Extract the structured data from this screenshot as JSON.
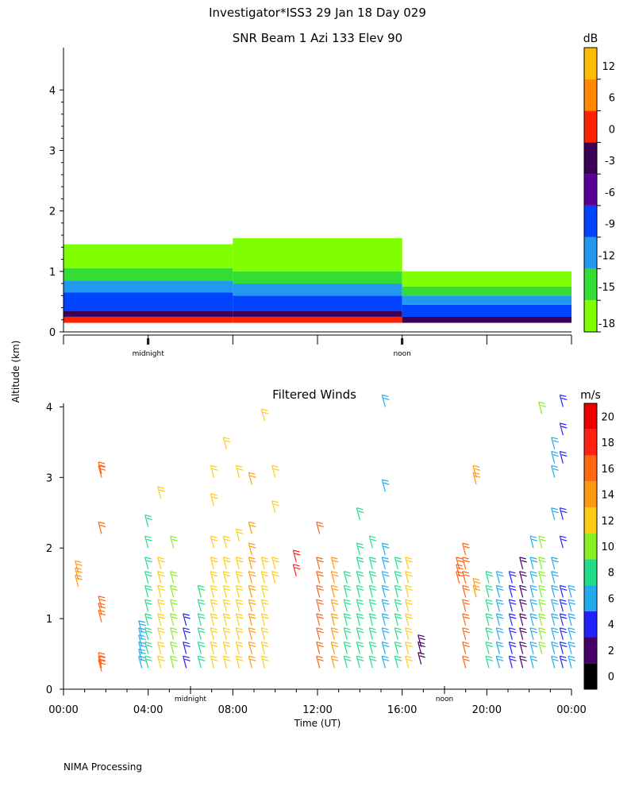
{
  "header": {
    "title": "Investigator*ISS3  29 Jan 18 Day 029",
    "ylabel": "Altitude (km)",
    "footer": "NIMA Processing"
  },
  "colors": {
    "snr_scale": [
      "#7fff00",
      "#33dd33",
      "#2299ee",
      "#0044ff",
      "#5a0099",
      "#3a0055",
      "#ff2200",
      "#ff8800",
      "#ffbb00"
    ],
    "wind_scale": [
      "#000000",
      "#440066",
      "#2222ff",
      "#22aaee",
      "#22dd88",
      "#88ee22",
      "#ffcc11",
      "#ff9911",
      "#ff6611",
      "#ff2211",
      "#ee0000"
    ]
  },
  "chart_data": [
    {
      "type": "heatmap",
      "title": "SNR Beam 1 Azi 133 Elev 90",
      "colorbar_label": "dB",
      "colorbar_ticks": [
        "12",
        "6",
        "0",
        "-3",
        "-6",
        "-9",
        "-12",
        "-15",
        "-18"
      ],
      "ylim": [
        0,
        4.7
      ],
      "yticks": [
        "0",
        "1",
        "2",
        "3",
        "4"
      ],
      "xlim_hours": [
        -4,
        20
      ],
      "time_markers": [
        "midnight",
        "noon"
      ],
      "bands": [
        {
          "from_h": -4,
          "to_h": 4,
          "layers_km": [
            [
              0.15,
              0.25,
              "#ff2200"
            ],
            [
              0.25,
              0.35,
              "#3a0055"
            ],
            [
              0.35,
              0.65,
              "#0044ff"
            ],
            [
              0.65,
              0.85,
              "#2299ee"
            ],
            [
              0.85,
              1.05,
              "#33dd33"
            ],
            [
              1.05,
              1.45,
              "#7fff00"
            ]
          ]
        },
        {
          "from_h": 4,
          "to_h": 12,
          "layers_km": [
            [
              0.15,
              0.25,
              "#ff2200"
            ],
            [
              0.25,
              0.35,
              "#3a0055"
            ],
            [
              0.35,
              0.6,
              "#0044ff"
            ],
            [
              0.6,
              0.8,
              "#2299ee"
            ],
            [
              0.8,
              1.0,
              "#33dd33"
            ],
            [
              1.0,
              1.55,
              "#7fff00"
            ]
          ]
        },
        {
          "from_h": 12,
          "to_h": 20,
          "layers_km": [
            [
              0.15,
              0.25,
              "#3a0055"
            ],
            [
              0.25,
              0.45,
              "#0044ff"
            ],
            [
              0.45,
              0.6,
              "#2299ee"
            ],
            [
              0.6,
              0.75,
              "#33dd33"
            ],
            [
              0.75,
              1.0,
              "#7fff00"
            ]
          ]
        }
      ]
    },
    {
      "type": "scatter",
      "title": "Filtered Winds",
      "colorbar_label": "m/s",
      "colorbar_ticks": [
        "20",
        "18",
        "16",
        "14",
        "12",
        "10",
        "8",
        "6",
        "4",
        "2",
        "0"
      ],
      "ylim": [
        0,
        4.05
      ],
      "yticks": [
        "0",
        "1",
        "2",
        "3",
        "4"
      ],
      "xlabel": "Time (UT)",
      "xticks": [
        "00:00",
        "04:00",
        "08:00",
        "12:00",
        "16:00",
        "20:00",
        "00:00"
      ],
      "xlim_hours": [
        0,
        24
      ],
      "time_markers": [
        "midnight",
        "noon"
      ],
      "profiles": [
        {
          "t": 0.7,
          "speed": 15,
          "levels": [
            1.45,
            1.55,
            1.65
          ]
        },
        {
          "t": 1.8,
          "speed": 17,
          "levels": [
            0.25,
            0.3,
            0.35,
            0.95,
            1.05,
            1.15,
            2.2,
            3.0,
            3.05
          ]
        },
        {
          "t": 3.7,
          "speed": 7,
          "levels": [
            0.3,
            0.4,
            0.5,
            0.6,
            0.7,
            0.8
          ]
        },
        {
          "t": 4.0,
          "speed": 9,
          "levels": [
            0.3,
            0.5,
            0.7,
            0.9,
            1.1,
            1.3,
            1.5,
            1.7,
            2.0,
            2.3
          ]
        },
        {
          "t": 4.6,
          "speed": 13,
          "levels": [
            0.3,
            0.5,
            0.7,
            0.9,
            1.1,
            1.3,
            1.5,
            1.7,
            2.7
          ]
        },
        {
          "t": 5.2,
          "speed": 10,
          "levels": [
            0.3,
            0.5,
            0.7,
            0.9,
            1.1,
            1.3,
            1.5,
            2.0
          ]
        },
        {
          "t": 5.8,
          "speed": 4,
          "levels": [
            0.3,
            0.5,
            0.7,
            0.9
          ]
        },
        {
          "t": 6.5,
          "speed": 9,
          "levels": [
            0.3,
            0.5,
            0.7,
            0.9,
            1.1,
            1.3
          ]
        },
        {
          "t": 7.1,
          "speed": 12,
          "levels": [
            0.3,
            0.5,
            0.7,
            0.9,
            1.1,
            1.3,
            1.5,
            1.7,
            2.0,
            2.6,
            3.0
          ]
        },
        {
          "t": 7.7,
          "speed": 13,
          "levels": [
            0.3,
            0.5,
            0.7,
            0.9,
            1.1,
            1.3,
            1.5,
            1.7,
            2.0,
            3.4
          ]
        },
        {
          "t": 8.3,
          "speed": 12,
          "levels": [
            0.3,
            0.5,
            0.7,
            0.9,
            1.1,
            1.3,
            1.5,
            1.7,
            2.1,
            3.0
          ]
        },
        {
          "t": 8.9,
          "speed": 14,
          "levels": [
            0.3,
            0.5,
            0.7,
            0.9,
            1.1,
            1.3,
            1.5,
            1.7,
            1.9,
            2.2,
            2.9
          ]
        },
        {
          "t": 9.5,
          "speed": 13,
          "levels": [
            0.3,
            0.5,
            0.7,
            0.9,
            1.1,
            1.3,
            1.5,
            1.7,
            3.8
          ]
        },
        {
          "t": 10.0,
          "speed": 13,
          "levels": [
            1.5,
            1.7,
            2.5,
            3.0
          ]
        },
        {
          "t": 11.0,
          "speed": 19,
          "levels": [
            1.6,
            1.8
          ]
        },
        {
          "t": 12.1,
          "speed": 17,
          "levels": [
            0.3,
            0.5,
            0.7,
            0.9,
            1.1,
            1.3,
            1.5,
            1.7,
            2.2
          ]
        },
        {
          "t": 12.8,
          "speed": 15,
          "levels": [
            0.3,
            0.5,
            0.7,
            0.9,
            1.1,
            1.3,
            1.5,
            1.7
          ]
        },
        {
          "t": 13.4,
          "speed": 9,
          "levels": [
            0.3,
            0.5,
            0.7,
            0.9,
            1.1,
            1.3,
            1.5
          ]
        },
        {
          "t": 14.0,
          "speed": 8,
          "levels": [
            0.3,
            0.5,
            0.7,
            0.9,
            1.1,
            1.3,
            1.5,
            1.7,
            1.9,
            2.4
          ]
        },
        {
          "t": 14.6,
          "speed": 8,
          "levels": [
            0.3,
            0.5,
            0.7,
            0.9,
            1.1,
            1.3,
            1.5,
            1.7,
            2.0
          ]
        },
        {
          "t": 15.2,
          "speed": 7,
          "levels": [
            0.3,
            0.5,
            0.7,
            0.9,
            1.1,
            1.3,
            1.5,
            1.7,
            1.9,
            2.8,
            4.0
          ]
        },
        {
          "t": 15.8,
          "speed": 8,
          "levels": [
            0.3,
            0.5,
            0.7,
            0.9,
            1.1,
            1.3,
            1.5,
            1.7
          ]
        },
        {
          "t": 16.3,
          "speed": 12,
          "levels": [
            0.3,
            0.5,
            0.7,
            0.9,
            1.1,
            1.3,
            1.5,
            1.7
          ]
        },
        {
          "t": 16.9,
          "speed": 3,
          "levels": [
            0.35,
            0.5,
            0.6
          ]
        },
        {
          "t": 18.7,
          "speed": 17,
          "levels": [
            1.5,
            1.6,
            1.7
          ]
        },
        {
          "t": 19.0,
          "speed": 16,
          "levels": [
            0.3,
            0.5,
            0.7,
            0.9,
            1.1,
            1.3,
            1.5,
            1.7,
            1.9
          ]
        },
        {
          "t": 19.5,
          "speed": 15,
          "levels": [
            1.3,
            1.4,
            2.9,
            3.0
          ]
        },
        {
          "t": 20.1,
          "speed": 8,
          "levels": [
            0.3,
            0.5,
            0.7,
            0.9,
            1.1,
            1.3,
            1.5
          ]
        },
        {
          "t": 20.6,
          "speed": 7,
          "levels": [
            0.3,
            0.5,
            0.7,
            0.9,
            1.1,
            1.3,
            1.5
          ]
        },
        {
          "t": 21.2,
          "speed": 5,
          "levels": [
            0.3,
            0.5,
            0.7,
            0.9,
            1.1,
            1.3,
            1.5
          ]
        },
        {
          "t": 21.7,
          "speed": 3,
          "levels": [
            0.3,
            0.5,
            0.7,
            0.9,
            1.1,
            1.3,
            1.5,
            1.7
          ]
        },
        {
          "t": 22.2,
          "speed": 7,
          "levels": [
            0.3,
            0.5,
            0.7,
            0.9,
            1.1,
            1.3,
            1.5,
            1.7,
            2.0
          ]
        },
        {
          "t": 22.6,
          "speed": 10,
          "levels": [
            0.5,
            0.7,
            0.9,
            1.1,
            1.3,
            1.5,
            1.7,
            2.0,
            3.9
          ]
        },
        {
          "t": 23.2,
          "speed": 6,
          "levels": [
            0.3,
            0.5,
            0.7,
            0.9,
            1.1,
            1.3,
            1.5,
            1.7,
            2.4,
            3.0,
            3.2,
            3.4
          ]
        },
        {
          "t": 23.6,
          "speed": 5,
          "levels": [
            0.3,
            0.5,
            0.7,
            0.9,
            1.1,
            1.3,
            2.0,
            2.4,
            3.2,
            3.6,
            4.0
          ]
        },
        {
          "t": 24.0,
          "speed": 7,
          "levels": [
            0.3,
            0.5,
            0.7,
            0.9,
            1.1,
            1.3
          ]
        }
      ]
    }
  ]
}
